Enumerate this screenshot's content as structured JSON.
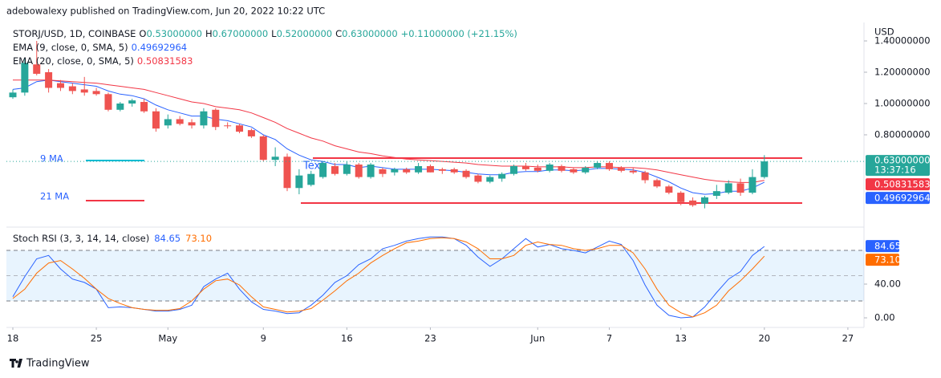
{
  "chart_data": {
    "type": "candlestick",
    "title": "adebowalexy published on TradingView.com, Jun 20, 2022 10:22 UTC",
    "symbol": "STORJ/USD, 1D, COINBASE",
    "ohlc_legend": [
      {
        "letter": "O",
        "text": "0.53000000"
      },
      {
        "letter": "H",
        "text": "0.67000000"
      },
      {
        "letter": "L",
        "text": "0.52000000"
      },
      {
        "letter": "C",
        "text": "0.63000000"
      }
    ],
    "change_label": "+0.11000000 (+21.15%)",
    "unit": "USD",
    "up_color": "#26a69a",
    "down_color": "#ef5350",
    "categories": [
      "18",
      null,
      null,
      null,
      null,
      null,
      null,
      "25",
      null,
      null,
      null,
      null,
      null,
      "May",
      null,
      null,
      null,
      null,
      null,
      null,
      null,
      "9",
      null,
      null,
      null,
      null,
      null,
      null,
      "16",
      null,
      null,
      null,
      null,
      null,
      null,
      "23",
      null,
      null,
      null,
      null,
      null,
      null,
      null,
      null,
      "Jun",
      null,
      null,
      null,
      null,
      null,
      "7",
      null,
      null,
      null,
      null,
      null,
      "13",
      null,
      null,
      null,
      null,
      null,
      null,
      "20",
      null,
      null,
      null,
      null,
      null,
      null,
      "27"
    ],
    "open": [
      1.04,
      1.07,
      1.25,
      1.2,
      1.13,
      1.11,
      1.09,
      1.08,
      1.06,
      0.96,
      1.0,
      1.01,
      0.95,
      0.86,
      0.9,
      0.88,
      0.86,
      0.96,
      0.86,
      0.86,
      0.83,
      0.79,
      0.64,
      0.66,
      0.46,
      0.48,
      0.53,
      0.6,
      0.55,
      0.61,
      0.53,
      0.58,
      0.56,
      0.58,
      0.56,
      0.6,
      0.58,
      0.58,
      0.57,
      0.54,
      0.5,
      0.52,
      0.55,
      0.6,
      0.59,
      0.57,
      0.6,
      0.58,
      0.56,
      0.59,
      0.62,
      0.59,
      0.57,
      0.56,
      0.51,
      0.47,
      0.43,
      0.38,
      0.36,
      0.41,
      0.43,
      0.49,
      0.43,
      0.53,
      null,
      null,
      null,
      null,
      null,
      null,
      null
    ],
    "high": [
      1.09,
      1.29,
      1.4,
      1.22,
      1.15,
      1.13,
      1.17,
      1.1,
      1.07,
      1.01,
      1.03,
      1.03,
      0.97,
      0.93,
      0.92,
      0.9,
      0.97,
      0.97,
      0.88,
      0.87,
      0.84,
      0.8,
      0.72,
      0.68,
      0.58,
      0.57,
      0.63,
      0.62,
      0.63,
      0.62,
      0.62,
      0.59,
      0.59,
      0.59,
      0.62,
      0.61,
      0.59,
      0.59,
      0.58,
      0.55,
      0.54,
      0.56,
      0.61,
      0.62,
      0.61,
      0.62,
      0.61,
      0.59,
      0.6,
      0.63,
      0.63,
      0.6,
      0.59,
      0.57,
      0.52,
      0.48,
      0.44,
      0.4,
      0.41,
      0.48,
      0.51,
      0.52,
      0.58,
      0.67,
      null,
      null,
      null,
      null,
      null,
      null,
      null
    ],
    "low": [
      1.03,
      1.05,
      1.18,
      1.07,
      1.08,
      1.06,
      1.05,
      1.05,
      0.95,
      0.95,
      0.98,
      0.94,
      0.82,
      0.84,
      0.86,
      0.84,
      0.84,
      0.83,
      0.84,
      0.81,
      0.78,
      0.63,
      0.6,
      0.44,
      0.42,
      0.47,
      0.52,
      0.54,
      0.54,
      0.52,
      0.52,
      0.53,
      0.54,
      0.55,
      0.55,
      0.56,
      0.55,
      0.55,
      0.52,
      0.49,
      0.49,
      0.5,
      0.54,
      0.57,
      0.56,
      0.56,
      0.56,
      0.55,
      0.55,
      0.58,
      0.57,
      0.56,
      0.55,
      0.49,
      0.46,
      0.42,
      0.35,
      0.34,
      0.33,
      0.39,
      0.42,
      0.41,
      0.42,
      0.52,
      null,
      null,
      null,
      null,
      null,
      null,
      null
    ],
    "close": [
      1.07,
      1.26,
      1.19,
      1.1,
      1.1,
      1.08,
      1.07,
      1.06,
      0.96,
      1.0,
      1.02,
      0.95,
      0.84,
      0.9,
      0.87,
      0.86,
      0.95,
      0.85,
      0.857,
      0.82,
      0.79,
      0.64,
      0.66,
      0.46,
      0.54,
      0.55,
      0.62,
      0.55,
      0.61,
      0.53,
      0.61,
      0.55,
      0.58,
      0.56,
      0.6,
      0.56,
      0.57,
      0.56,
      0.53,
      0.5,
      0.53,
      0.55,
      0.6,
      0.58,
      0.57,
      0.61,
      0.57,
      0.56,
      0.59,
      0.62,
      0.58,
      0.57,
      0.56,
      0.51,
      0.47,
      0.43,
      0.37,
      0.35,
      0.4,
      0.44,
      0.49,
      0.43,
      0.53,
      0.63,
      null,
      null,
      null,
      null,
      null,
      null,
      null
    ],
    "last_price_label": "0.63000000",
    "countdown": "13:37:16",
    "ylim": [
      0.21,
      1.518
    ],
    "yticks": [
      {
        "value": 0.8,
        "label": "0.80000000"
      },
      {
        "value": 1.0,
        "label": "1.00000000"
      },
      {
        "value": 1.2,
        "label": "1.20000000"
      },
      {
        "value": 1.4,
        "label": "1.40000000"
      }
    ],
    "grid": false,
    "series": [
      {
        "name": "EMA (9, close, 0, SMA, 5)",
        "color": "#2962ff",
        "values": [
          1.09,
          1.1,
          1.14,
          1.15,
          1.14,
          1.13,
          1.12,
          1.11,
          1.08,
          1.06,
          1.05,
          1.03,
          0.99,
          0.96,
          0.94,
          0.92,
          0.92,
          0.9,
          0.89,
          0.87,
          0.85,
          0.8,
          0.77,
          0.71,
          0.67,
          0.64,
          0.63,
          0.61,
          0.61,
          0.59,
          0.6,
          0.59,
          0.58,
          0.58,
          0.58,
          0.58,
          0.575,
          0.57,
          0.56,
          0.55,
          0.545,
          0.545,
          0.56,
          0.565,
          0.565,
          0.575,
          0.575,
          0.57,
          0.575,
          0.585,
          0.585,
          0.58,
          0.575,
          0.56,
          0.53,
          0.5,
          0.46,
          0.43,
          0.42,
          0.425,
          0.44,
          0.44,
          0.46,
          0.49692964,
          null,
          null,
          null,
          null,
          null,
          null,
          null
        ]
      },
      {
        "name": "EMA (20, close, 0, SMA, 5)",
        "color": "#f23645",
        "values": [
          1.15,
          1.15,
          1.15,
          1.15,
          1.145,
          1.14,
          1.135,
          1.13,
          1.12,
          1.11,
          1.1,
          1.09,
          1.07,
          1.05,
          1.03,
          1.01,
          1.0,
          0.98,
          0.97,
          0.96,
          0.94,
          0.91,
          0.88,
          0.84,
          0.81,
          0.78,
          0.76,
          0.73,
          0.71,
          0.69,
          0.68,
          0.665,
          0.655,
          0.645,
          0.64,
          0.635,
          0.63,
          0.625,
          0.62,
          0.61,
          0.605,
          0.6,
          0.6,
          0.6,
          0.595,
          0.595,
          0.595,
          0.59,
          0.59,
          0.595,
          0.595,
          0.59,
          0.59,
          0.585,
          0.575,
          0.56,
          0.545,
          0.53,
          0.515,
          0.505,
          0.5,
          0.495,
          0.495,
          0.50831583,
          null,
          null,
          null,
          null,
          null,
          null,
          null
        ]
      }
    ],
    "annotations": [
      "9 MA",
      "21 MA",
      "Text"
    ],
    "stoch": {
      "title": "Stoch RSI (3, 3, 14, 14, close)",
      "ylim": [
        -11.4,
        107.6
      ],
      "yticks": [
        {
          "value": 0,
          "label": "0.00"
        },
        {
          "value": 40,
          "label": "40.00"
        }
      ],
      "bands": [
        20,
        50,
        80
      ],
      "series": [
        {
          "color": "#2962ff",
          "values": [
            25,
            49,
            70,
            74,
            58,
            46,
            42,
            34,
            12,
            13,
            12,
            10,
            8,
            8,
            10,
            15,
            37,
            46,
            53,
            34,
            19,
            10,
            8,
            5,
            6,
            15,
            27,
            42,
            50,
            63,
            70,
            82,
            86,
            91,
            94,
            96,
            96,
            94,
            86,
            72,
            61,
            70,
            82,
            94,
            84,
            87,
            82,
            80,
            77,
            84,
            91,
            87,
            68,
            39,
            15,
            3,
            0,
            1,
            13,
            30,
            46,
            55,
            74,
            84.65,
            null,
            null,
            null,
            null,
            null,
            null,
            null
          ]
        },
        {
          "color": "#ff6d00",
          "last_label": "73.10",
          "values": [
            23,
            34,
            53,
            65,
            68,
            58,
            47,
            34,
            23,
            17,
            12,
            10,
            9,
            9,
            11,
            20,
            34,
            44,
            46,
            39,
            25,
            13,
            10,
            7,
            8,
            11,
            21,
            32,
            44,
            53,
            65,
            74,
            82,
            89,
            91,
            94,
            95,
            94,
            90,
            82,
            70,
            70,
            74,
            86,
            90,
            87,
            86,
            82,
            80,
            82,
            86,
            86,
            77,
            58,
            34,
            15,
            6,
            1,
            6,
            15,
            32,
            44,
            58,
            73.1,
            null,
            null,
            null,
            null,
            null,
            null,
            null
          ]
        }
      ]
    },
    "footer": "TradingView"
  }
}
